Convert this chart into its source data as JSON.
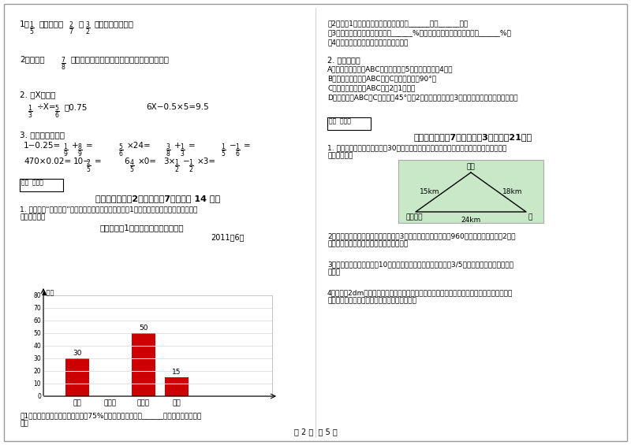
{
  "page_bg": "#ffffff",
  "border_color": "#cccccc",
  "title_text": "某十字路口1小时内闯红灯情况统计图",
  "subtitle_text": "2011年6月",
  "bar_categories": [
    "汽车",
    "摩托车",
    "电动车",
    "行人"
  ],
  "bar_values": [
    30,
    0,
    50,
    15
  ],
  "bar_color": "#cc0000",
  "ylabel": "数量",
  "ylim": [
    0,
    90
  ],
  "yticks": [
    0,
    10,
    20,
    30,
    40,
    50,
    60,
    70,
    80
  ],
  "grid_color": "#cccccc",
  "page_footer": "第 2 页  共 5 页"
}
